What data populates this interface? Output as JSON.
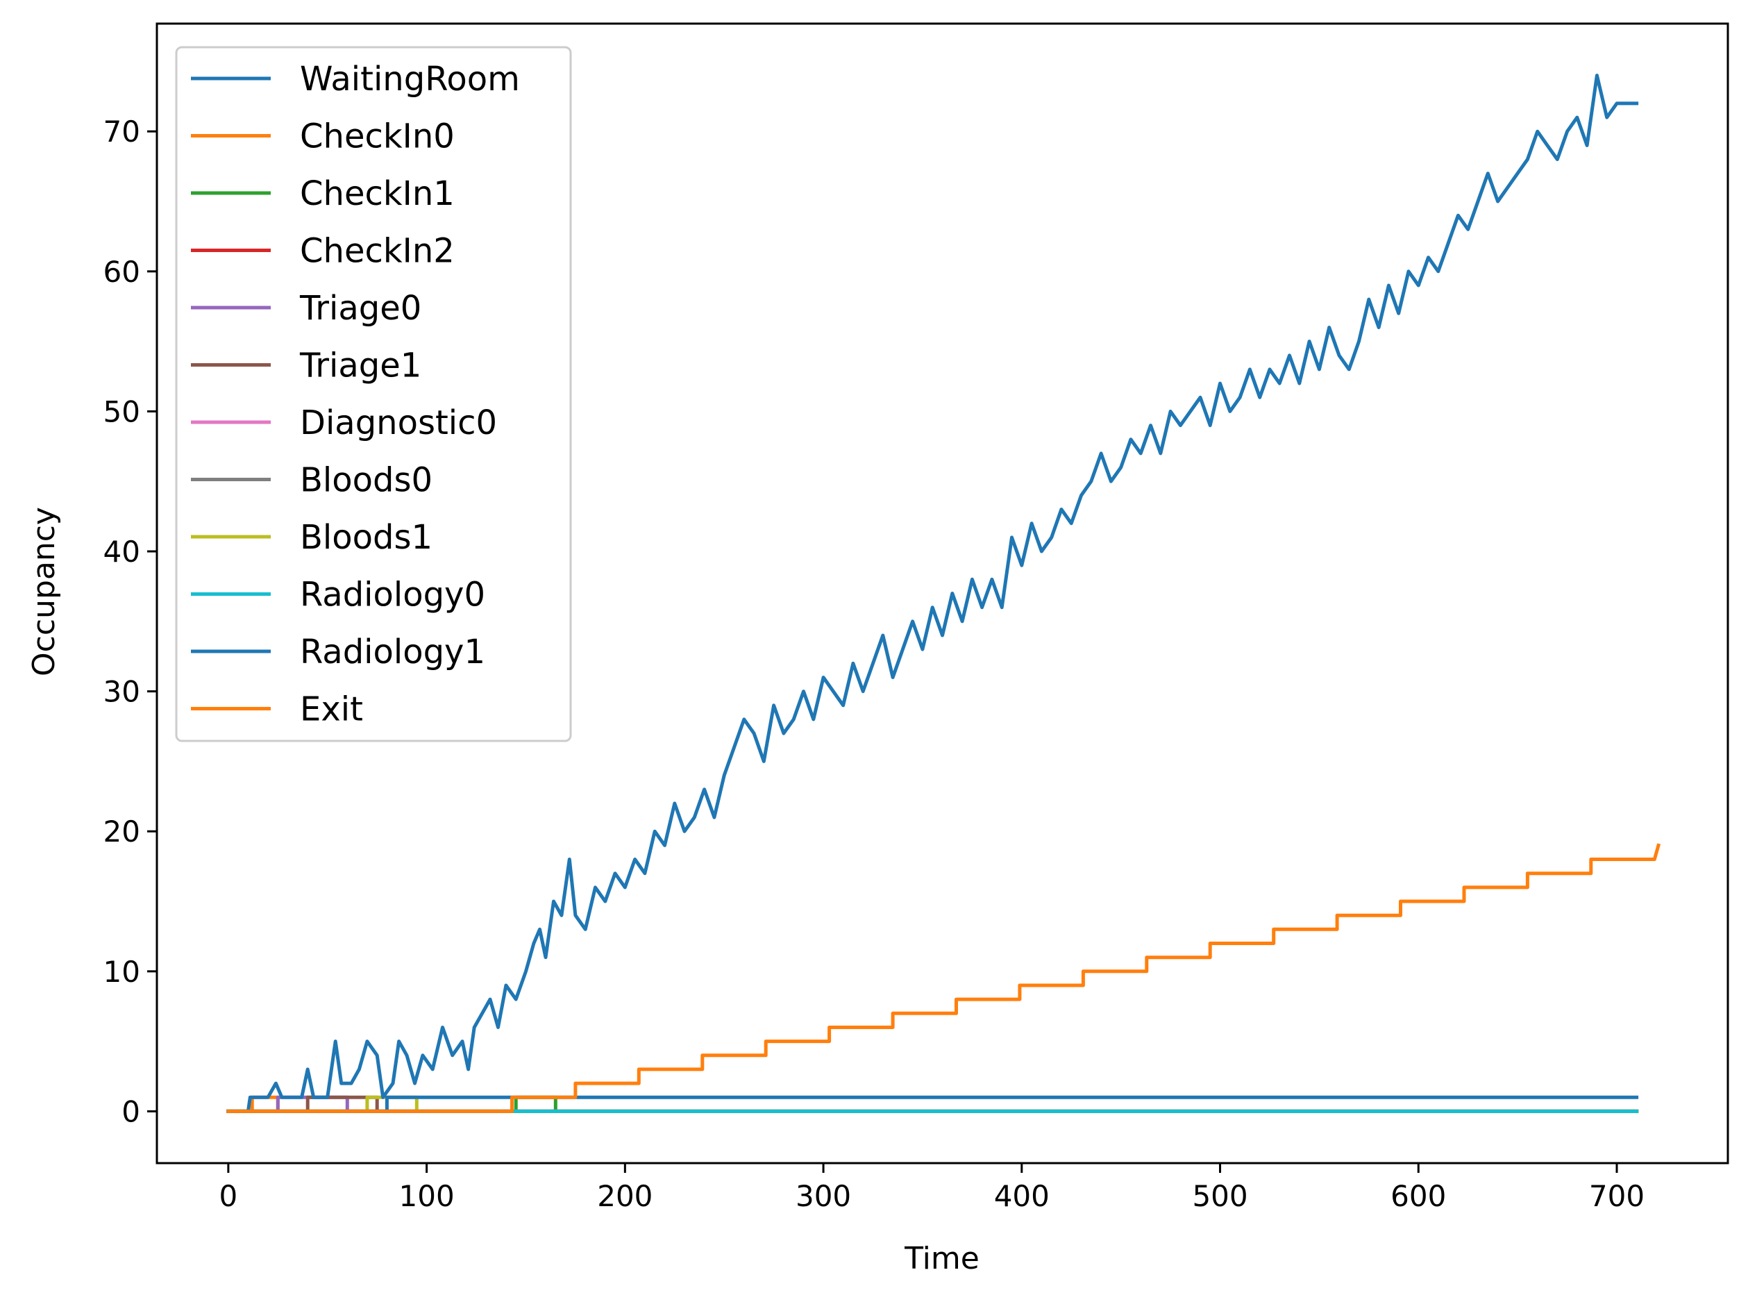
{
  "chart_data": {
    "type": "line",
    "title": "",
    "xlabel": "Time",
    "ylabel": "Occupancy",
    "xlim": [
      -36,
      756
    ],
    "ylim": [
      -3.7,
      77.7
    ],
    "xticks": [
      0,
      100,
      200,
      300,
      400,
      500,
      600,
      700
    ],
    "yticks": [
      0,
      10,
      20,
      30,
      40,
      50,
      60,
      70
    ],
    "grid": false,
    "legend_position": "top-left",
    "series": [
      {
        "name": "WaitingRoom",
        "color": "#1f77b4",
        "points": [
          [
            0,
            0
          ],
          [
            10,
            0
          ],
          [
            11,
            1
          ],
          [
            20,
            1
          ],
          [
            24,
            2
          ],
          [
            27,
            1
          ],
          [
            37,
            1
          ],
          [
            40,
            3
          ],
          [
            43,
            1
          ],
          [
            50,
            1
          ],
          [
            54,
            5
          ],
          [
            57,
            2
          ],
          [
            62,
            2
          ],
          [
            66,
            3
          ],
          [
            70,
            5
          ],
          [
            75,
            4
          ],
          [
            78,
            1
          ],
          [
            83,
            2
          ],
          [
            86,
            5
          ],
          [
            90,
            4
          ],
          [
            94,
            2
          ],
          [
            98,
            4
          ],
          [
            103,
            3
          ],
          [
            108,
            6
          ],
          [
            113,
            4
          ],
          [
            118,
            5
          ],
          [
            121,
            3
          ],
          [
            124,
            6
          ],
          [
            128,
            7
          ],
          [
            132,
            8
          ],
          [
            136,
            6
          ],
          [
            140,
            9
          ],
          [
            145,
            8
          ],
          [
            150,
            10
          ],
          [
            154,
            12
          ],
          [
            157,
            13
          ],
          [
            160,
            11
          ],
          [
            164,
            15
          ],
          [
            168,
            14
          ],
          [
            172,
            18
          ],
          [
            175,
            14
          ],
          [
            180,
            13
          ],
          [
            185,
            16
          ],
          [
            190,
            15
          ],
          [
            195,
            17
          ],
          [
            200,
            16
          ],
          [
            205,
            18
          ],
          [
            210,
            17
          ],
          [
            215,
            20
          ],
          [
            220,
            19
          ],
          [
            225,
            22
          ],
          [
            230,
            20
          ],
          [
            235,
            21
          ],
          [
            240,
            23
          ],
          [
            245,
            21
          ],
          [
            250,
            24
          ],
          [
            255,
            26
          ],
          [
            260,
            28
          ],
          [
            265,
            27
          ],
          [
            270,
            25
          ],
          [
            275,
            29
          ],
          [
            280,
            27
          ],
          [
            285,
            28
          ],
          [
            290,
            30
          ],
          [
            295,
            28
          ],
          [
            300,
            31
          ],
          [
            305,
            30
          ],
          [
            310,
            29
          ],
          [
            315,
            32
          ],
          [
            320,
            30
          ],
          [
            325,
            32
          ],
          [
            330,
            34
          ],
          [
            335,
            31
          ],
          [
            340,
            33
          ],
          [
            345,
            35
          ],
          [
            350,
            33
          ],
          [
            355,
            36
          ],
          [
            360,
            34
          ],
          [
            365,
            37
          ],
          [
            370,
            35
          ],
          [
            375,
            38
          ],
          [
            380,
            36
          ],
          [
            385,
            38
          ],
          [
            390,
            36
          ],
          [
            395,
            41
          ],
          [
            400,
            39
          ],
          [
            405,
            42
          ],
          [
            410,
            40
          ],
          [
            415,
            41
          ],
          [
            420,
            43
          ],
          [
            425,
            42
          ],
          [
            430,
            44
          ],
          [
            435,
            45
          ],
          [
            440,
            47
          ],
          [
            445,
            45
          ],
          [
            450,
            46
          ],
          [
            455,
            48
          ],
          [
            460,
            47
          ],
          [
            465,
            49
          ],
          [
            470,
            47
          ],
          [
            475,
            50
          ],
          [
            480,
            49
          ],
          [
            485,
            50
          ],
          [
            490,
            51
          ],
          [
            495,
            49
          ],
          [
            500,
            52
          ],
          [
            505,
            50
          ],
          [
            510,
            51
          ],
          [
            515,
            53
          ],
          [
            520,
            51
          ],
          [
            525,
            53
          ],
          [
            530,
            52
          ],
          [
            535,
            54
          ],
          [
            540,
            52
          ],
          [
            545,
            55
          ],
          [
            550,
            53
          ],
          [
            555,
            56
          ],
          [
            560,
            54
          ],
          [
            565,
            53
          ],
          [
            570,
            55
          ],
          [
            575,
            58
          ],
          [
            580,
            56
          ],
          [
            585,
            59
          ],
          [
            590,
            57
          ],
          [
            595,
            60
          ],
          [
            600,
            59
          ],
          [
            605,
            61
          ],
          [
            610,
            60
          ],
          [
            615,
            62
          ],
          [
            620,
            64
          ],
          [
            625,
            63
          ],
          [
            630,
            65
          ],
          [
            635,
            67
          ],
          [
            640,
            65
          ],
          [
            645,
            66
          ],
          [
            650,
            67
          ],
          [
            655,
            68
          ],
          [
            660,
            70
          ],
          [
            665,
            69
          ],
          [
            670,
            68
          ],
          [
            675,
            70
          ],
          [
            680,
            71
          ],
          [
            685,
            69
          ],
          [
            690,
            74
          ],
          [
            695,
            71
          ],
          [
            700,
            72
          ],
          [
            705,
            72
          ],
          [
            710,
            72
          ]
        ]
      },
      {
        "name": "CheckIn0",
        "color": "#ff7f0e",
        "points": [
          [
            0,
            0
          ],
          [
            12,
            0
          ],
          [
            12,
            1
          ],
          [
            25,
            1
          ],
          [
            25,
            0
          ],
          [
            710,
            0
          ]
        ]
      },
      {
        "name": "CheckIn1",
        "color": "#2ca02c",
        "points": [
          [
            0,
            0
          ],
          [
            145,
            0
          ],
          [
            145,
            1
          ],
          [
            165,
            1
          ],
          [
            165,
            0
          ],
          [
            710,
            0
          ]
        ]
      },
      {
        "name": "CheckIn2",
        "color": "#d62728",
        "points": [
          [
            0,
            0
          ],
          [
            710,
            0
          ]
        ]
      },
      {
        "name": "Triage0",
        "color": "#9467bd",
        "points": [
          [
            0,
            0
          ],
          [
            25,
            0
          ],
          [
            25,
            1
          ],
          [
            60,
            1
          ],
          [
            60,
            0
          ],
          [
            710,
            0
          ]
        ]
      },
      {
        "name": "Triage1",
        "color": "#8c564b",
        "points": [
          [
            0,
            0
          ],
          [
            40,
            0
          ],
          [
            40,
            1
          ],
          [
            75,
            1
          ],
          [
            75,
            0
          ],
          [
            710,
            0
          ]
        ]
      },
      {
        "name": "Diagnostic0",
        "color": "#e377c2",
        "points": [
          [
            0,
            0
          ],
          [
            710,
            0
          ]
        ]
      },
      {
        "name": "Bloods0",
        "color": "#7f7f7f",
        "points": [
          [
            0,
            0
          ],
          [
            710,
            0
          ]
        ]
      },
      {
        "name": "Bloods1",
        "color": "#bcbd22",
        "points": [
          [
            0,
            0
          ],
          [
            70,
            0
          ],
          [
            70,
            1
          ],
          [
            95,
            1
          ],
          [
            95,
            0
          ],
          [
            710,
            0
          ]
        ]
      },
      {
        "name": "Radiology0",
        "color": "#17becf",
        "points": [
          [
            0,
            0
          ],
          [
            710,
            0
          ]
        ]
      },
      {
        "name": "Radiology1",
        "color": "#1f77b4",
        "points": [
          [
            0,
            0
          ],
          [
            80,
            0
          ],
          [
            80,
            1
          ],
          [
            710,
            1
          ]
        ]
      },
      {
        "name": "Exit",
        "color": "#ff7f0e",
        "points": [
          [
            0,
            0
          ],
          [
            143,
            0
          ],
          [
            143,
            1
          ],
          [
            175,
            1
          ],
          [
            175,
            2
          ],
          [
            207,
            2
          ],
          [
            207,
            3
          ],
          [
            239,
            3
          ],
          [
            239,
            4
          ],
          [
            271,
            4
          ],
          [
            271,
            5
          ],
          [
            303,
            5
          ],
          [
            303,
            6
          ],
          [
            335,
            6
          ],
          [
            335,
            7
          ],
          [
            367,
            7
          ],
          [
            367,
            8
          ],
          [
            399,
            8
          ],
          [
            399,
            9
          ],
          [
            431,
            9
          ],
          [
            431,
            10
          ],
          [
            463,
            10
          ],
          [
            463,
            11
          ],
          [
            495,
            11
          ],
          [
            495,
            12
          ],
          [
            527,
            12
          ],
          [
            527,
            13
          ],
          [
            559,
            13
          ],
          [
            559,
            14
          ],
          [
            591,
            14
          ],
          [
            591,
            15
          ],
          [
            623,
            15
          ],
          [
            623,
            16
          ],
          [
            655,
            16
          ],
          [
            655,
            17
          ],
          [
            687,
            17
          ],
          [
            687,
            18
          ],
          [
            719,
            18
          ],
          [
            721,
            19
          ]
        ]
      }
    ]
  }
}
